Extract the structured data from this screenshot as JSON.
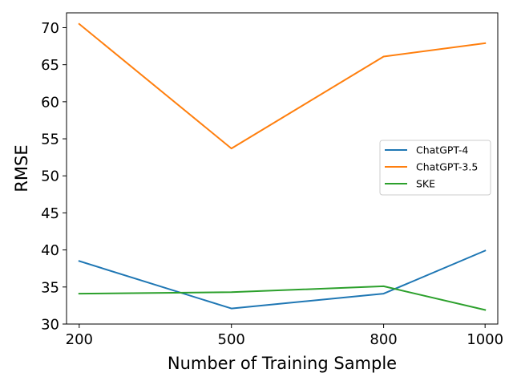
{
  "chart_data": {
    "type": "line",
    "title": "",
    "xlabel": "Number of Training Sample",
    "ylabel": "RMSE",
    "x": [
      200,
      500,
      800,
      1000
    ],
    "x_tick_labels": [
      "200",
      "500",
      "800",
      "1000"
    ],
    "ylim": [
      30,
      72
    ],
    "y_ticks": [
      30,
      35,
      40,
      45,
      50,
      55,
      60,
      65,
      70
    ],
    "y_tick_labels": [
      "30",
      "35",
      "40",
      "45",
      "50",
      "55",
      "60",
      "65",
      "70"
    ],
    "grid": false,
    "legend_position": "center-right",
    "series": [
      {
        "name": "ChatGPT-4",
        "color": "#1f77b4",
        "values": [
          38.5,
          32.1,
          34.1,
          39.9
        ]
      },
      {
        "name": "ChatGPT-3.5",
        "color": "#ff7f0e",
        "values": [
          70.5,
          53.7,
          66.1,
          67.9
        ]
      },
      {
        "name": "SKE",
        "color": "#2ca02c",
        "values": [
          34.1,
          34.3,
          35.1,
          31.9
        ]
      }
    ]
  }
}
